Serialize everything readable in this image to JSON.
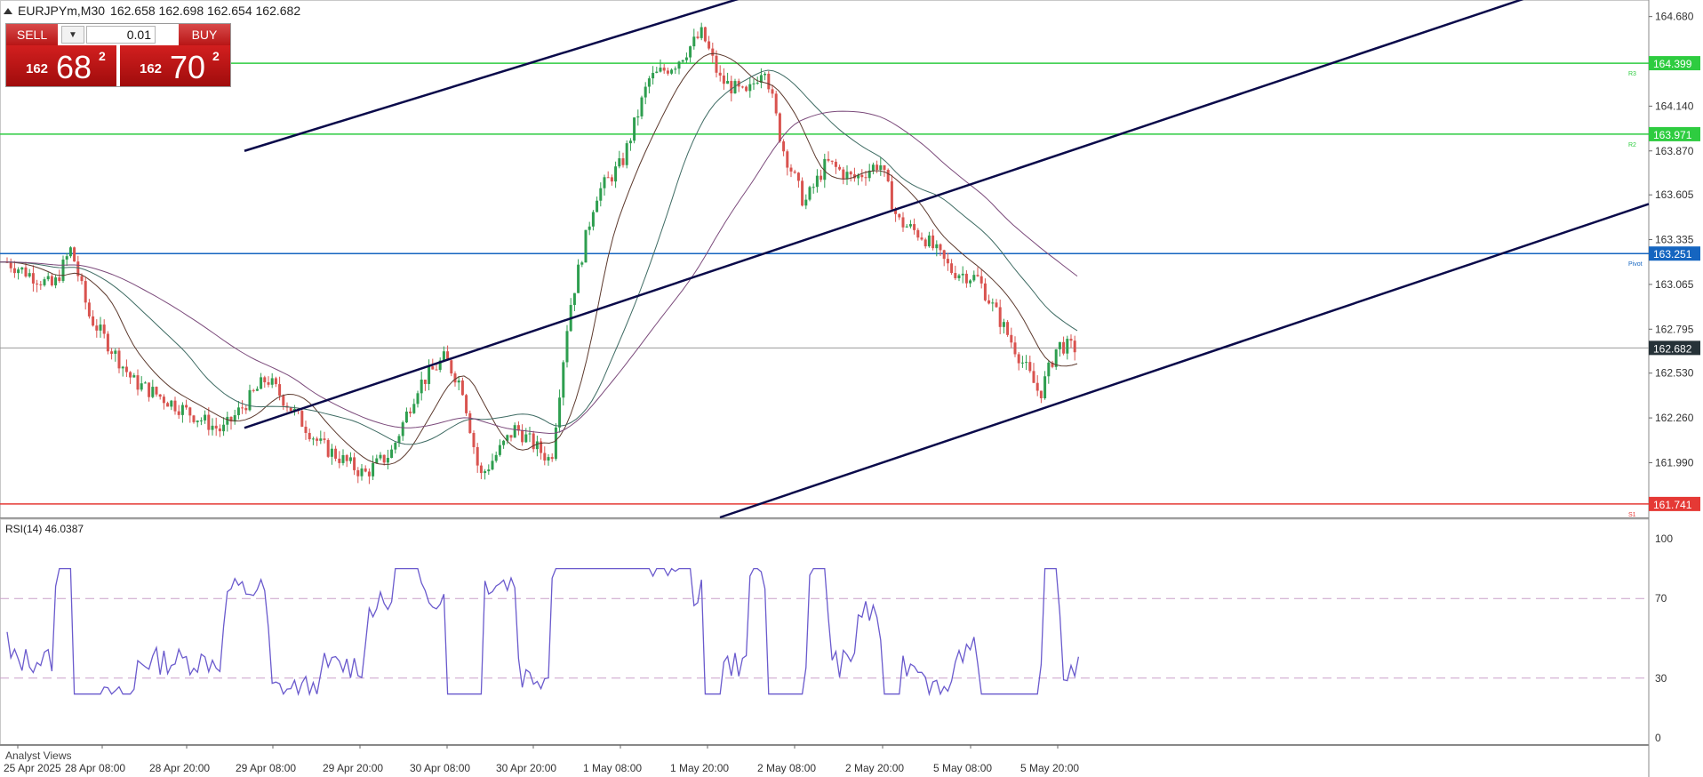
{
  "header": {
    "symbol_info": "EURJPYm,M30",
    "ohlc": "162.658 162.698 162.654 162.682"
  },
  "trade_panel": {
    "sell_label": "SELL",
    "buy_label": "BUY",
    "lot_value": "0.01",
    "sell_price": {
      "prefix": "162",
      "big": "68",
      "sup": "2"
    },
    "buy_price": {
      "prefix": "162",
      "big": "70",
      "sup": "2"
    },
    "dropdown_glyph": "▼"
  },
  "price_axis_ticks": [
    "164.680",
    "164.140",
    "163.870",
    "163.605",
    "163.335",
    "163.065",
    "162.795",
    "162.530",
    "162.260",
    "161.990"
  ],
  "rsi_axis_ticks": [
    "100",
    "70",
    "30",
    "0"
  ],
  "time_labels": [
    "25 Apr 2025",
    "28 Apr 08:00",
    "28 Apr 20:00",
    "29 Apr 08:00",
    "29 Apr 20:00",
    "30 Apr 08:00",
    "30 Apr 20:00",
    "1 May 08:00",
    "1 May 20:00",
    "2 May 08:00",
    "2 May 20:00",
    "5 May 08:00",
    "5 May 20:00"
  ],
  "levels": [
    {
      "label": "164.399",
      "color": "#2ecc40",
      "tag": "R3"
    },
    {
      "label": "163.971",
      "color": "#2ecc40",
      "tag": "R2"
    },
    {
      "label": "163.251",
      "color": "#1565c0",
      "tag": "Pivot"
    },
    {
      "label": "161.741",
      "color": "#e53935",
      "tag": "S1"
    }
  ],
  "current_price_label": "162.682",
  "rsi": {
    "header": "RSI(14) 46.0387"
  },
  "analyst_label": "Analyst Views",
  "colors": {
    "bull": "#2e9e4f",
    "bear": "#d9534f",
    "rsi_line": "#6a5acd"
  },
  "chart_data": {
    "type": "line",
    "y_unit_axis": "price",
    "ylim": [
      161.66,
      164.78
    ],
    "levels": [
      164.399,
      163.971,
      163.251,
      161.741
    ],
    "last_price": 162.682,
    "rsi_value": 46.0387,
    "rsi_levels": [
      70,
      30
    ],
    "rsi_range": [
      0,
      100
    ]
  }
}
